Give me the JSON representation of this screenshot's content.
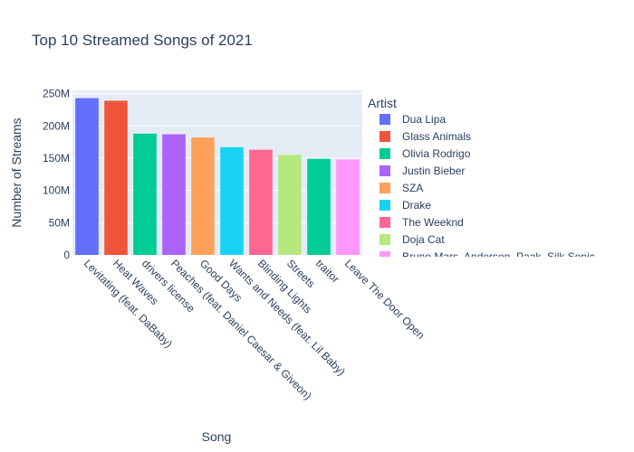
{
  "chart_data": {
    "type": "bar",
    "title": "Top 10 Streamed Songs of 2021",
    "xlabel": "Song",
    "ylabel": "Number of Streams",
    "ylim": [
      0,
      255000000
    ],
    "yticks": [
      0,
      50000000,
      100000000,
      150000000,
      200000000,
      250000000
    ],
    "ytick_labels": [
      "0",
      "50M",
      "100M",
      "150M",
      "200M",
      "250M"
    ],
    "grid": true,
    "legend": {
      "title": "Artist",
      "placement": "right"
    },
    "categories": [
      "Levitating (feat. DaBaby)",
      "Heat Waves",
      "drivers license",
      "Peaches (feat. Daniel Caesar & Giveon)",
      "Good Days",
      "Wants and Needs (feat. Lil Baby)",
      "Blinding Lights",
      "Streets",
      "traitor",
      "Leave The Door Open"
    ],
    "values": [
      243000000,
      239000000,
      188000000,
      187000000,
      182000000,
      167000000,
      163000000,
      155000000,
      149000000,
      148000000
    ],
    "artists": [
      "Dua Lipa",
      "Glass Animals",
      "Olivia Rodrigo",
      "Justin Bieber",
      "SZA",
      "Drake",
      "The Weeknd",
      "Doja Cat",
      "Olivia Rodrigo",
      "Bruno Mars, Anderson .Paak, Silk Sonic"
    ],
    "series": [
      {
        "name": "Dua Lipa",
        "color": "#636efa"
      },
      {
        "name": "Glass Animals",
        "color": "#EF553B"
      },
      {
        "name": "Olivia Rodrigo",
        "color": "#00cc96"
      },
      {
        "name": "Justin Bieber",
        "color": "#ab63fa"
      },
      {
        "name": "SZA",
        "color": "#FFA15A"
      },
      {
        "name": "Drake",
        "color": "#19d3f3"
      },
      {
        "name": "The Weeknd",
        "color": "#FF6692"
      },
      {
        "name": "Doja Cat",
        "color": "#B6E880"
      },
      {
        "name": "Bruno Mars, Anderson .Paak, Silk Sonic",
        "color": "#FF97FF"
      }
    ]
  }
}
